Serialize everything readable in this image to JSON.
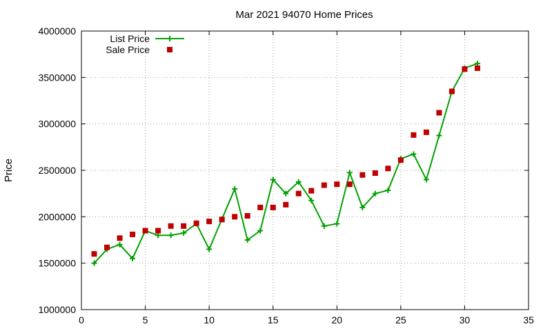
{
  "chart_data": {
    "type": "line",
    "title": "Mar 2021 94070 Home Prices",
    "xlabel": "",
    "ylabel": "Price",
    "xlim": [
      0,
      35
    ],
    "ylim": [
      1000000,
      4000000
    ],
    "x_ticks": [
      0,
      5,
      10,
      15,
      20,
      25,
      30,
      35
    ],
    "y_ticks": [
      1000000,
      1500000,
      2000000,
      2500000,
      3000000,
      3500000,
      4000000
    ],
    "grid": true,
    "legend_position": "top-left",
    "series": [
      {
        "name": "List Price",
        "style": "line-plus",
        "color": "#00a000",
        "x": [
          1,
          2,
          3,
          4,
          5,
          6,
          7,
          8,
          9,
          10,
          11,
          12,
          13,
          14,
          15,
          16,
          17,
          18,
          19,
          20,
          21,
          22,
          23,
          24,
          25,
          26,
          27,
          28,
          29,
          30,
          31
        ],
        "values": [
          1500000,
          1650000,
          1700000,
          1550000,
          1850000,
          1800000,
          1800000,
          1825000,
          1925000,
          1650000,
          1975000,
          2300000,
          1750000,
          1850000,
          2400000,
          2250000,
          2375000,
          2175000,
          1900000,
          1925000,
          2475000,
          2100000,
          2250000,
          2285000,
          2625000,
          2675000,
          2400000,
          2875000,
          3350000,
          3600000,
          3650000
        ]
      },
      {
        "name": "Sale Price",
        "style": "square",
        "color": "#c00000",
        "x": [
          1,
          2,
          3,
          4,
          5,
          6,
          7,
          8,
          9,
          10,
          11,
          12,
          13,
          14,
          15,
          16,
          17,
          18,
          19,
          20,
          21,
          22,
          23,
          24,
          25,
          26,
          27,
          28,
          29,
          30,
          31
        ],
        "values": [
          1600000,
          1670000,
          1770000,
          1810000,
          1850000,
          1850000,
          1900000,
          1900000,
          1930000,
          1950000,
          1970000,
          2000000,
          2010000,
          2100000,
          2100000,
          2130000,
          2250000,
          2280000,
          2340000,
          2350000,
          2350000,
          2450000,
          2470000,
          2520000,
          2610000,
          2880000,
          2910000,
          3120000,
          3350000,
          3590000,
          3600000
        ]
      }
    ]
  }
}
